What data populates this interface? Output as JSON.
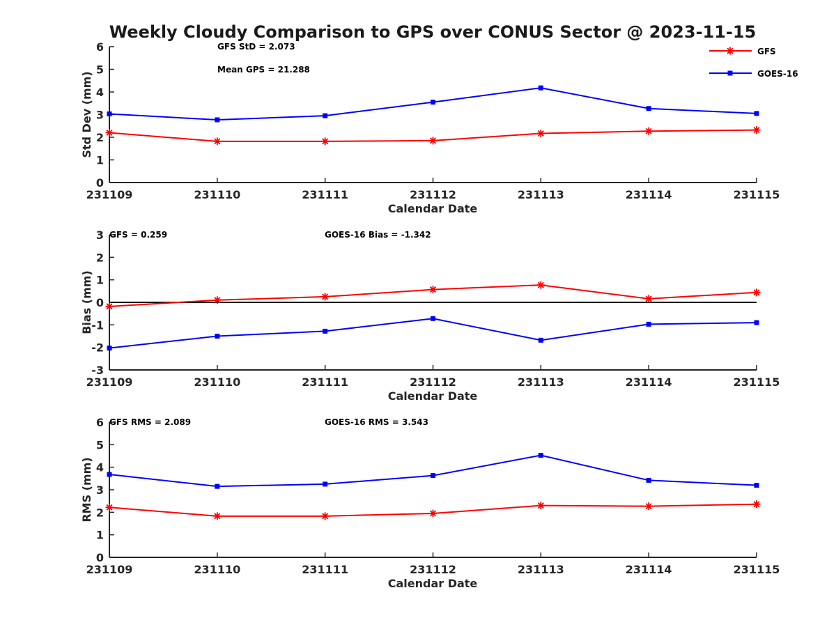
{
  "chart_data": {
    "type": "line",
    "title": "Weekly Cloudy Comparison to GPS over CONUS Sector @ 2023-11-15",
    "legend": {
      "placement": "top-right",
      "entries": [
        {
          "name": "GFS",
          "color": "#ff0000",
          "marker": "asterisk"
        },
        {
          "name": "GOES-16",
          "color": "#0000ff",
          "marker": "square"
        }
      ]
    },
    "categories": [
      "231109",
      "231110",
      "231111",
      "231112",
      "231113",
      "231114",
      "231115"
    ],
    "panels": [
      {
        "ylabel": "Std Dev (mm)",
        "xlabel": "Calendar Date",
        "ylim": [
          0,
          6
        ],
        "yticks": [
          "0",
          "1",
          "2",
          "3",
          "4",
          "5",
          "6"
        ],
        "zero_line": false,
        "annotations": [
          "GFS StD = 2.073",
          "Mean GPS = 21.288"
        ],
        "series": [
          {
            "name": "GFS",
            "color": "#ff0000",
            "marker": "asterisk",
            "values": [
              2.2,
              1.82,
              1.82,
              1.85,
              2.17,
              2.27,
              2.32
            ]
          },
          {
            "name": "GOES-16",
            "color": "#0000ff",
            "marker": "square",
            "values": [
              3.03,
              2.77,
              2.95,
              3.55,
              4.18,
              3.27,
              3.05
            ]
          }
        ]
      },
      {
        "ylabel": "Bias (mm)",
        "xlabel": "Calendar Date",
        "ylim": [
          -3,
          3
        ],
        "yticks": [
          "-3",
          "-2",
          "-1",
          "0",
          "1",
          "2",
          "3"
        ],
        "zero_line": true,
        "annotations": [
          "GFS = 0.259",
          "GOES-16 Bias  = -1.342"
        ],
        "series": [
          {
            "name": "GFS",
            "color": "#ff0000",
            "marker": "asterisk",
            "values": [
              -0.18,
              0.1,
              0.25,
              0.57,
              0.77,
              0.16,
              0.44
            ]
          },
          {
            "name": "GOES-16",
            "color": "#0000ff",
            "marker": "square",
            "values": [
              -2.03,
              -1.5,
              -1.28,
              -0.72,
              -1.68,
              -0.97,
              -0.9
            ]
          }
        ]
      },
      {
        "ylabel": "RMS (mm)",
        "xlabel": "Calendar Date",
        "ylim": [
          0,
          6
        ],
        "yticks": [
          "0",
          "1",
          "2",
          "3",
          "4",
          "5",
          "6"
        ],
        "zero_line": false,
        "annotations": [
          "GFS RMS = 2.089",
          "GOES-16 RMS = 3.543"
        ],
        "series": [
          {
            "name": "GFS",
            "color": "#ff0000",
            "marker": "asterisk",
            "values": [
              2.22,
              1.83,
              1.83,
              1.95,
              2.3,
              2.27,
              2.36
            ]
          },
          {
            "name": "GOES-16",
            "color": "#0000ff",
            "marker": "square",
            "values": [
              3.68,
              3.15,
              3.25,
              3.63,
              4.53,
              3.42,
              3.2
            ]
          }
        ]
      }
    ]
  }
}
